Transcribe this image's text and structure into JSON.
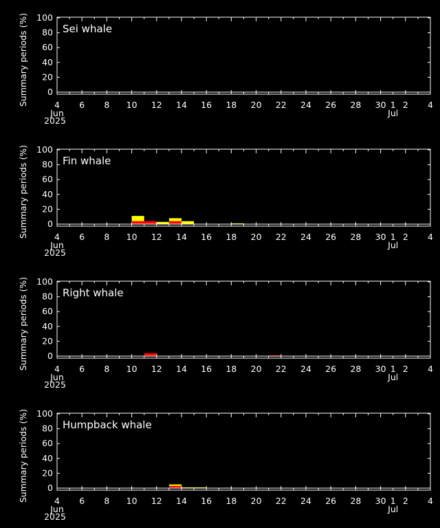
{
  "chart_data": [
    {
      "type": "bar",
      "title": "Sei whale",
      "ylabel": "Summary periods (%)",
      "ylim": [
        0,
        100
      ],
      "yticks": [
        0,
        20,
        40,
        60,
        80,
        100
      ],
      "x_ticks": [
        "4",
        "6",
        "8",
        "10",
        "12",
        "14",
        "16",
        "18",
        "20",
        "22",
        "24",
        "26",
        "28",
        "30",
        "1",
        "2",
        "4"
      ],
      "x_sublabels": {
        "month_start": "Jun",
        "year": "2025",
        "month_next": "Jul"
      },
      "x_range": [
        "2025-06-04",
        "2025-07-04"
      ],
      "series": [
        {
          "color": "#ff0000",
          "points": []
        },
        {
          "color": "#ffff00",
          "points": []
        }
      ]
    },
    {
      "type": "bar",
      "title": "Fin whale",
      "ylabel": "Summary periods (%)",
      "ylim": [
        0,
        100
      ],
      "yticks": [
        0,
        20,
        40,
        60,
        80,
        100
      ],
      "x_ticks": [
        "4",
        "6",
        "8",
        "10",
        "12",
        "14",
        "16",
        "18",
        "20",
        "22",
        "24",
        "26",
        "28",
        "30",
        "1",
        "2",
        "4"
      ],
      "x_sublabels": {
        "month_start": "Jun",
        "year": "2025",
        "month_next": "Jul"
      },
      "x_range": [
        "2025-06-04",
        "2025-07-04"
      ],
      "series": [
        {
          "color": "#ff0000",
          "points": [
            {
              "date": "2025-06-10",
              "value": 4
            },
            {
              "date": "2025-06-11",
              "value": 4
            },
            {
              "date": "2025-06-13",
              "value": 4
            }
          ]
        },
        {
          "color": "#ffff00",
          "points": [
            {
              "date": "2025-06-10",
              "value": 7
            },
            {
              "date": "2025-06-12",
              "value": 3
            },
            {
              "date": "2025-06-13",
              "value": 4
            },
            {
              "date": "2025-06-14",
              "value": 4
            },
            {
              "date": "2025-06-18",
              "value": 1
            }
          ]
        }
      ]
    },
    {
      "type": "bar",
      "title": "Right whale",
      "ylabel": "Summary periods (%)",
      "ylim": [
        0,
        100
      ],
      "yticks": [
        0,
        20,
        40,
        60,
        80,
        100
      ],
      "x_ticks": [
        "4",
        "6",
        "8",
        "10",
        "12",
        "14",
        "16",
        "18",
        "20",
        "22",
        "24",
        "26",
        "28",
        "30",
        "1",
        "2",
        "4"
      ],
      "x_sublabels": {
        "month_start": "Jun",
        "year": "2025",
        "month_next": "Jul"
      },
      "x_range": [
        "2025-06-04",
        "2025-07-04"
      ],
      "series": [
        {
          "color": "#ff0000",
          "points": [
            {
              "date": "2025-06-11",
              "value": 4
            },
            {
              "date": "2025-06-21",
              "value": 1
            }
          ]
        },
        {
          "color": "#ffff00",
          "points": []
        }
      ]
    },
    {
      "type": "bar",
      "title": "Humpback whale",
      "ylabel": "Summary periods (%)",
      "ylim": [
        0,
        100
      ],
      "yticks": [
        0,
        20,
        40,
        60,
        80,
        100
      ],
      "x_ticks": [
        "4",
        "6",
        "8",
        "10",
        "12",
        "14",
        "16",
        "18",
        "20",
        "22",
        "24",
        "26",
        "28",
        "30",
        "1",
        "2",
        "4"
      ],
      "x_sublabels": {
        "month_start": "Jun",
        "year": "2025",
        "month_next": "Jul"
      },
      "x_range": [
        "2025-06-04",
        "2025-07-04"
      ],
      "series": [
        {
          "color": "#ff0000",
          "points": [
            {
              "date": "2025-06-13",
              "value": 3
            }
          ]
        },
        {
          "color": "#ffff00",
          "points": [
            {
              "date": "2025-06-13",
              "value": 2
            },
            {
              "date": "2025-06-14",
              "value": 1
            },
            {
              "date": "2025-06-15",
              "value": 1
            }
          ]
        }
      ]
    }
  ]
}
